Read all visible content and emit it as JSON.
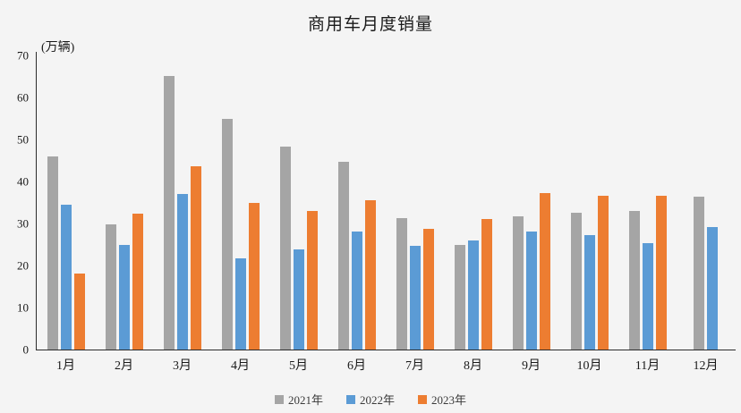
{
  "chart_data": {
    "type": "bar",
    "title": "商用车月度销量",
    "unit_label": "(万辆)",
    "categories": [
      "1月",
      "2月",
      "3月",
      "4月",
      "5月",
      "6月",
      "7月",
      "8月",
      "9月",
      "10月",
      "11月",
      "12月"
    ],
    "series": [
      {
        "name": "2021年",
        "color": "#a5a5a5",
        "values": [
          45.9,
          29.8,
          65.2,
          55.0,
          48.2,
          44.6,
          31.2,
          24.8,
          31.8,
          32.6,
          33.0,
          36.4
        ]
      },
      {
        "name": "2022年",
        "color": "#5b9bd5",
        "values": [
          34.5,
          25.0,
          37.1,
          21.7,
          23.9,
          28.1,
          24.6,
          25.9,
          28.0,
          27.3,
          25.4,
          29.2
        ]
      },
      {
        "name": "2023年",
        "color": "#ed7d31",
        "values": [
          18.1,
          32.4,
          43.7,
          34.9,
          33.0,
          35.5,
          28.8,
          31.1,
          37.3,
          36.6,
          36.7,
          null
        ]
      }
    ],
    "xlabel": "",
    "ylabel": "(万辆)",
    "ylim": [
      0,
      70
    ],
    "y_tick_step": 10,
    "grid": false,
    "legend_position": "bottom",
    "background_color": "#f4f4f4"
  }
}
